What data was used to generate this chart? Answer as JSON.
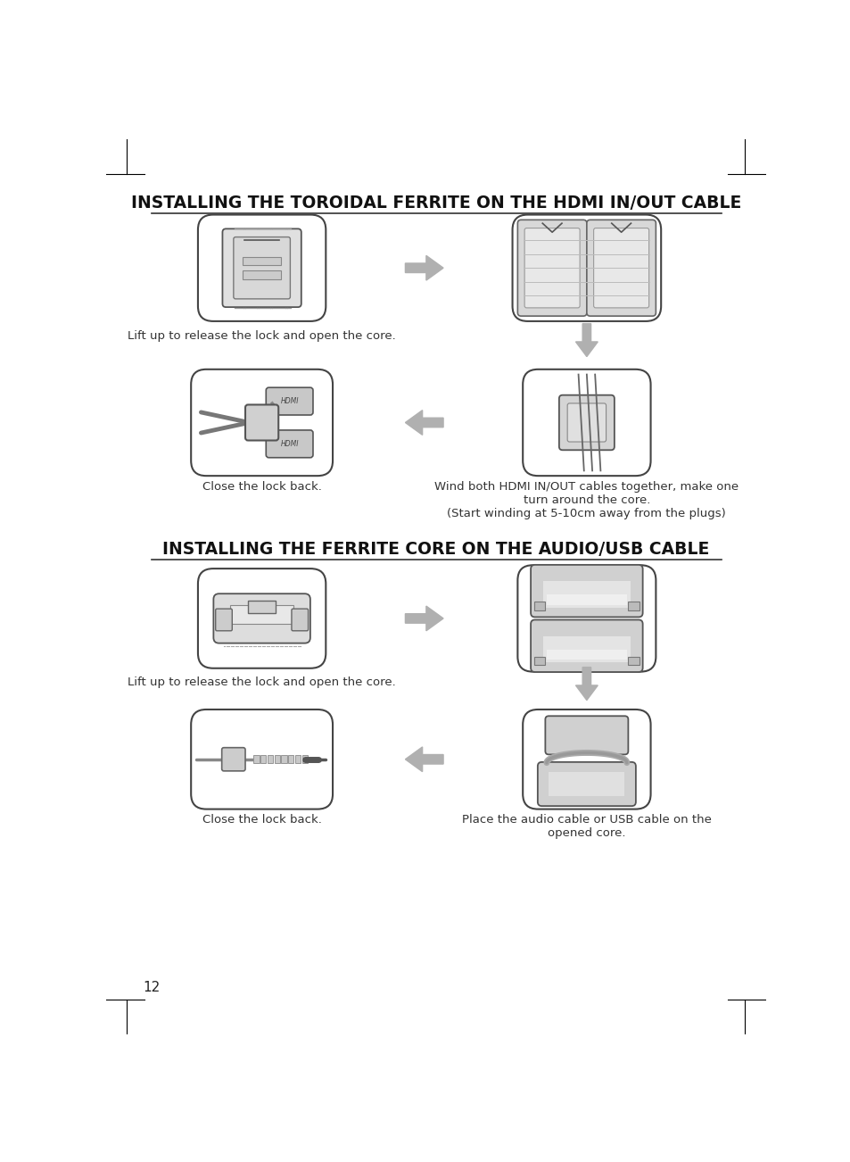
{
  "bg_color": "#ffffff",
  "border_color": "#000000",
  "title1": "INSTALLING THE TOROIDAL FERRITE ON THE HDMI IN/OUT CABLE",
  "title2": "INSTALLING THE FERRITE CORE ON THE AUDIO/USB CABLE",
  "caption1a": "Lift up to release the lock and open the core.",
  "caption1b": "Close the lock back.",
  "caption1c": "Wind both HDMI IN/OUT cables together, make one\nturn around the core.\n(Start winding at 5-10cm away from the plugs)",
  "caption2a": "Lift up to release the lock and open the core.",
  "caption2b": "Close the lock back.",
  "caption2c": "Place the audio cable or USB cable on the\nopened core.",
  "page_num": "12",
  "arrow_color": "#b0b0b0",
  "img_border": "#444444",
  "img_bg": "#ffffff",
  "title_color": "#111111",
  "text_color": "#333333",
  "line_color": "#555555"
}
